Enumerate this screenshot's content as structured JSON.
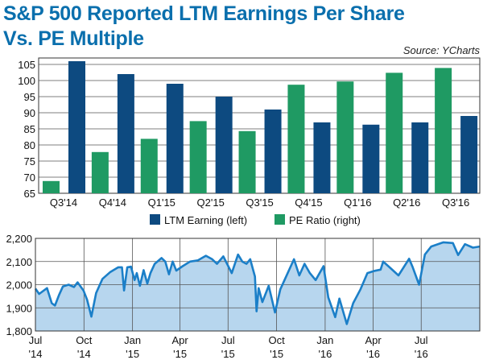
{
  "header": {
    "title_line1": "S&P 500 Reported LTM Earnings Per Share",
    "title_line2": "Vs. PE Multiple",
    "source": "Source: YCharts"
  },
  "colors": {
    "title": "#0a6fad",
    "ltm_bar": "#0d4a80",
    "pe_bar": "#1f9a63",
    "line": "#1b7fc8",
    "area_fill": "#b7d6ee"
  },
  "chart_data": [
    {
      "type": "bar",
      "categories": [
        "Q3'14",
        "Q4'14",
        "Q1'15",
        "Q2'15",
        "Q3'15",
        "Q4'15",
        "Q1'16",
        "Q2'16",
        "Q3'16"
      ],
      "category_labels": [
        "Q3'14",
        "Q4'14",
        "Q1'15",
        "Q2'15",
        "Q3'15",
        "Q4'15",
        "Q1'16",
        "Q2'16",
        "Q3'16"
      ],
      "series": [
        {
          "name": "LTM Earning (left)",
          "values": [
            106,
            102,
            99,
            95,
            91,
            87,
            86.3,
            87,
            89
          ],
          "color": "#0d4a80"
        },
        {
          "name": "PE Ratio (right)",
          "values": [
            68.8,
            77.8,
            81.9,
            87.4,
            84.3,
            98.7,
            99.7,
            102.4,
            103.9
          ],
          "color": "#1f9a63"
        }
      ],
      "ylim": [
        65,
        107
      ],
      "yticks": [
        65,
        70,
        75,
        80,
        85,
        90,
        95,
        100,
        105
      ],
      "grid": true,
      "legend": "bottom"
    },
    {
      "type": "area",
      "x_labels": [
        [
          "Jul",
          "'14"
        ],
        [
          "Oct",
          "'14"
        ],
        [
          "Jan",
          "'15"
        ],
        [
          "Apr",
          "'15"
        ],
        [
          "Jul",
          "'15"
        ],
        [
          "Oct",
          "'15"
        ],
        [
          "Jan",
          "'16"
        ],
        [
          "Apr",
          "'16"
        ],
        [
          "Jul",
          "'16"
        ]
      ],
      "yticks": [
        1800,
        1900,
        2000,
        2100,
        2200
      ],
      "ytick_labels": [
        "1,800",
        "1,900",
        "2,000",
        "2,100",
        "2,200"
      ],
      "ylim": [
        1800,
        2200
      ],
      "xlim": [
        "2014-07-01",
        "2016-10-20"
      ],
      "grid": true,
      "points": [
        [
          "2014-07-01",
          1983
        ],
        [
          "2014-07-08",
          1960
        ],
        [
          "2014-07-23",
          1985
        ],
        [
          "2014-08-01",
          1920
        ],
        [
          "2014-08-07",
          1910
        ],
        [
          "2014-08-15",
          1957
        ],
        [
          "2014-08-22",
          1992
        ],
        [
          "2014-09-02",
          2000
        ],
        [
          "2014-09-12",
          1990
        ],
        [
          "2014-09-19",
          2010
        ],
        [
          "2014-09-30",
          1975
        ],
        [
          "2014-10-07",
          1935
        ],
        [
          "2014-10-15",
          1862
        ],
        [
          "2014-10-24",
          1964
        ],
        [
          "2014-11-05",
          2025
        ],
        [
          "2014-11-20",
          2055
        ],
        [
          "2014-12-05",
          2075
        ],
        [
          "2014-12-12",
          2075
        ],
        [
          "2014-12-16",
          1975
        ],
        [
          "2014-12-22",
          2075
        ],
        [
          "2014-12-29",
          2078
        ],
        [
          "2015-01-05",
          2020
        ],
        [
          "2015-01-09",
          2050
        ],
        [
          "2015-01-15",
          1995
        ],
        [
          "2015-01-22",
          2063
        ],
        [
          "2015-01-29",
          2005
        ],
        [
          "2015-02-04",
          2050
        ],
        [
          "2015-02-12",
          2090
        ],
        [
          "2015-02-25",
          2115
        ],
        [
          "2015-03-04",
          2100
        ],
        [
          "2015-03-11",
          2045
        ],
        [
          "2015-03-18",
          2100
        ],
        [
          "2015-03-25",
          2061
        ],
        [
          "2015-04-06",
          2080
        ],
        [
          "2015-04-20",
          2100
        ],
        [
          "2015-05-05",
          2105
        ],
        [
          "2015-05-20",
          2125
        ],
        [
          "2015-06-01",
          2110
        ],
        [
          "2015-06-10",
          2090
        ],
        [
          "2015-06-22",
          2122
        ],
        [
          "2015-07-08",
          2050
        ],
        [
          "2015-07-20",
          2130
        ],
        [
          "2015-07-28",
          2100
        ],
        [
          "2015-08-05",
          2090
        ],
        [
          "2015-08-12",
          2110
        ],
        [
          "2015-08-21",
          2035
        ],
        [
          "2015-08-24",
          1885
        ],
        [
          "2015-08-28",
          1985
        ],
        [
          "2015-09-04",
          1925
        ],
        [
          "2015-09-16",
          1995
        ],
        [
          "2015-09-28",
          1880
        ],
        [
          "2015-10-08",
          1980
        ],
        [
          "2015-10-22",
          2050
        ],
        [
          "2015-11-03",
          2110
        ],
        [
          "2015-11-13",
          2040
        ],
        [
          "2015-11-23",
          2090
        ],
        [
          "2015-12-03",
          2050
        ],
        [
          "2015-12-14",
          2020
        ],
        [
          "2015-12-29",
          2080
        ],
        [
          "2016-01-07",
          1945
        ],
        [
          "2016-01-20",
          1860
        ],
        [
          "2016-01-28",
          1940
        ],
        [
          "2016-02-11",
          1830
        ],
        [
          "2016-02-23",
          1920
        ],
        [
          "2016-03-08",
          1980
        ],
        [
          "2016-03-21",
          2050
        ],
        [
          "2016-04-04",
          2060
        ],
        [
          "2016-04-15",
          2065
        ],
        [
          "2016-04-20",
          2100
        ],
        [
          "2016-05-02",
          2075
        ],
        [
          "2016-05-19",
          2040
        ],
        [
          "2016-06-08",
          2112
        ],
        [
          "2016-06-15",
          2075
        ],
        [
          "2016-06-27",
          2000
        ],
        [
          "2016-07-08",
          2130
        ],
        [
          "2016-07-20",
          2165
        ],
        [
          "2016-08-12",
          2183
        ],
        [
          "2016-08-30",
          2180
        ],
        [
          "2016-09-09",
          2128
        ],
        [
          "2016-09-22",
          2175
        ],
        [
          "2016-10-07",
          2160
        ],
        [
          "2016-10-20",
          2165
        ]
      ]
    }
  ]
}
